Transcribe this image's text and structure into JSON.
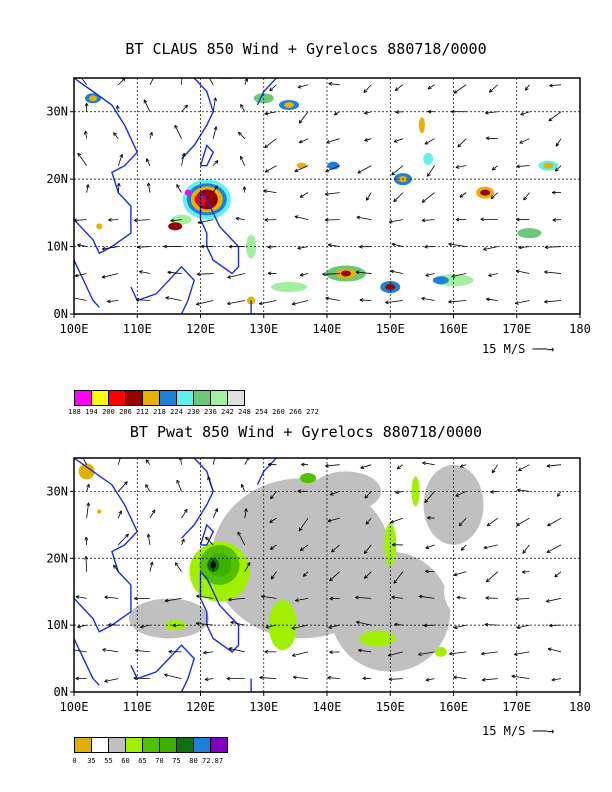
{
  "panels": [
    {
      "title": "BT CLAUS 850 Wind + Gyrelocs 880718/0000",
      "lat_ticks": [
        "30N",
        "20N",
        "10N",
        "0N"
      ],
      "lon_ticks": [
        "100E",
        "110E",
        "120E",
        "130E",
        "140E",
        "150E",
        "160E",
        "170E",
        "180"
      ],
      "scale_label": "15 M/S",
      "legend_colors": [
        "#ff00ff",
        "#ffff00",
        "#ff0000",
        "#990000",
        "#e8b000",
        "#1e7fd8",
        "#5ff0f0",
        "#6ac878",
        "#a0f0a0",
        "#e0e0e0"
      ],
      "legend_labels": [
        "188",
        "194",
        "200",
        "206",
        "212",
        "218",
        "224",
        "230",
        "236",
        "242",
        "248",
        "254",
        "260",
        "266",
        "272"
      ]
    },
    {
      "title": "BT Pwat 850 Wind + Gyrelocs 880718/0000",
      "lat_ticks": [
        "30N",
        "20N",
        "10N",
        "0N"
      ],
      "lon_ticks": [
        "100E",
        "110E",
        "120E",
        "130E",
        "140E",
        "150E",
        "160E",
        "170E",
        "180"
      ],
      "scale_label": "15 M/S",
      "legend_colors": [
        "#e0b000",
        "#ffffff",
        "#c0c0c0",
        "#a0f000",
        "#50c000",
        "#40b000",
        "#107010",
        "#1e7fd8",
        "#8000c0"
      ],
      "legend_labels": [
        "0",
        "35",
        "55",
        "60",
        "65",
        "70",
        "75",
        "80",
        "72.87"
      ]
    }
  ],
  "axes": {
    "lon_range": [
      100,
      180
    ],
    "lat_range": [
      0,
      35
    ],
    "grid": "dashed"
  }
}
